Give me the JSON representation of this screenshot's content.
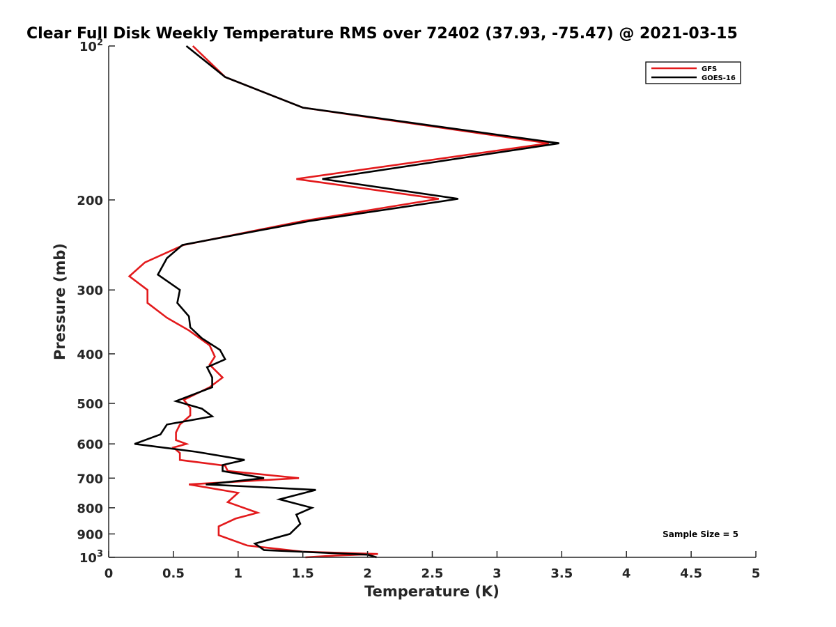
{
  "chart_data": {
    "type": "line",
    "title": "Clear Full Disk Weekly Temperature RMS over 72402 (37.93, -75.47) @ 2021-03-15",
    "xlabel": "Temperature (K)",
    "ylabel": "Pressure (mb)",
    "xlim": [
      0,
      5
    ],
    "ylim": [
      100,
      1000
    ],
    "yscale": "log",
    "y_reversed": true,
    "xticks": [
      {
        "value": 0,
        "label": "0"
      },
      {
        "value": 0.5,
        "label": "0.5"
      },
      {
        "value": 1,
        "label": "1"
      },
      {
        "value": 1.5,
        "label": "1.5"
      },
      {
        "value": 2,
        "label": "2"
      },
      {
        "value": 2.5,
        "label": "2.5"
      },
      {
        "value": 3,
        "label": "3"
      },
      {
        "value": 3.5,
        "label": "3.5"
      },
      {
        "value": 4,
        "label": "4"
      },
      {
        "value": 4.5,
        "label": "4.5"
      },
      {
        "value": 5,
        "label": "5"
      }
    ],
    "yticks": [
      {
        "value": 100,
        "label": "10",
        "sup": "2"
      },
      {
        "value": 200,
        "label": "200",
        "sup": ""
      },
      {
        "value": 300,
        "label": "300",
        "sup": ""
      },
      {
        "value": 400,
        "label": "400",
        "sup": ""
      },
      {
        "value": 500,
        "label": "500",
        "sup": ""
      },
      {
        "value": 600,
        "label": "600",
        "sup": ""
      },
      {
        "value": 700,
        "label": "700",
        "sup": ""
      },
      {
        "value": 800,
        "label": "800",
        "sup": ""
      },
      {
        "value": 900,
        "label": "900",
        "sup": ""
      },
      {
        "value": 1000,
        "label": "10",
        "sup": "3"
      }
    ],
    "legend_position": "top-right",
    "annotation": "Sample Size = 5",
    "series": [
      {
        "name": "GFS",
        "color": "#e31a1c",
        "points": [
          [
            0.65,
            100
          ],
          [
            0.9,
            115
          ],
          [
            1.5,
            132
          ],
          [
            3.4,
            155
          ],
          [
            1.45,
            182
          ],
          [
            2.55,
            199
          ],
          [
            1.5,
            220
          ],
          [
            0.58,
            245
          ],
          [
            0.28,
            265
          ],
          [
            0.16,
            282
          ],
          [
            0.3,
            300
          ],
          [
            0.3,
            318
          ],
          [
            0.45,
            340
          ],
          [
            0.62,
            360
          ],
          [
            0.78,
            385
          ],
          [
            0.82,
            405
          ],
          [
            0.78,
            420
          ],
          [
            0.88,
            445
          ],
          [
            0.78,
            465
          ],
          [
            0.58,
            492
          ],
          [
            0.63,
            510
          ],
          [
            0.63,
            528
          ],
          [
            0.55,
            550
          ],
          [
            0.52,
            570
          ],
          [
            0.52,
            590
          ],
          [
            0.6,
            600
          ],
          [
            0.5,
            610
          ],
          [
            0.55,
            625
          ],
          [
            0.55,
            645
          ],
          [
            0.9,
            662
          ],
          [
            0.92,
            678
          ],
          [
            1.47,
            700
          ],
          [
            0.62,
            720
          ],
          [
            1.0,
            748
          ],
          [
            0.92,
            780
          ],
          [
            1.15,
            818
          ],
          [
            0.98,
            840
          ],
          [
            0.85,
            870
          ],
          [
            0.85,
            905
          ],
          [
            1.07,
            948
          ],
          [
            1.5,
            975
          ],
          [
            2.08,
            985
          ],
          [
            1.75,
            992
          ],
          [
            1.52,
            1000
          ]
        ]
      },
      {
        "name": "GOES-16",
        "color": "#000000",
        "points": [
          [
            0.6,
            100
          ],
          [
            0.9,
            115
          ],
          [
            1.5,
            132
          ],
          [
            3.48,
            155
          ],
          [
            1.65,
            182
          ],
          [
            2.7,
            199
          ],
          [
            1.55,
            220
          ],
          [
            0.57,
            245
          ],
          [
            0.45,
            260
          ],
          [
            0.38,
            280
          ],
          [
            0.55,
            300
          ],
          [
            0.53,
            318
          ],
          [
            0.62,
            338
          ],
          [
            0.63,
            355
          ],
          [
            0.72,
            373
          ],
          [
            0.86,
            393
          ],
          [
            0.9,
            410
          ],
          [
            0.76,
            425
          ],
          [
            0.8,
            445
          ],
          [
            0.8,
            465
          ],
          [
            0.52,
            495
          ],
          [
            0.72,
            512
          ],
          [
            0.8,
            530
          ],
          [
            0.45,
            550
          ],
          [
            0.4,
            575
          ],
          [
            0.2,
            600
          ],
          [
            0.68,
            622
          ],
          [
            1.05,
            645
          ],
          [
            0.88,
            660
          ],
          [
            0.88,
            678
          ],
          [
            1.2,
            700
          ],
          [
            0.75,
            720
          ],
          [
            1.6,
            738
          ],
          [
            1.32,
            770
          ],
          [
            1.57,
            800
          ],
          [
            1.45,
            825
          ],
          [
            1.48,
            860
          ],
          [
            1.4,
            900
          ],
          [
            1.13,
            940
          ],
          [
            1.2,
            968
          ],
          [
            2.0,
            988
          ],
          [
            2.07,
            1000
          ]
        ]
      }
    ]
  }
}
